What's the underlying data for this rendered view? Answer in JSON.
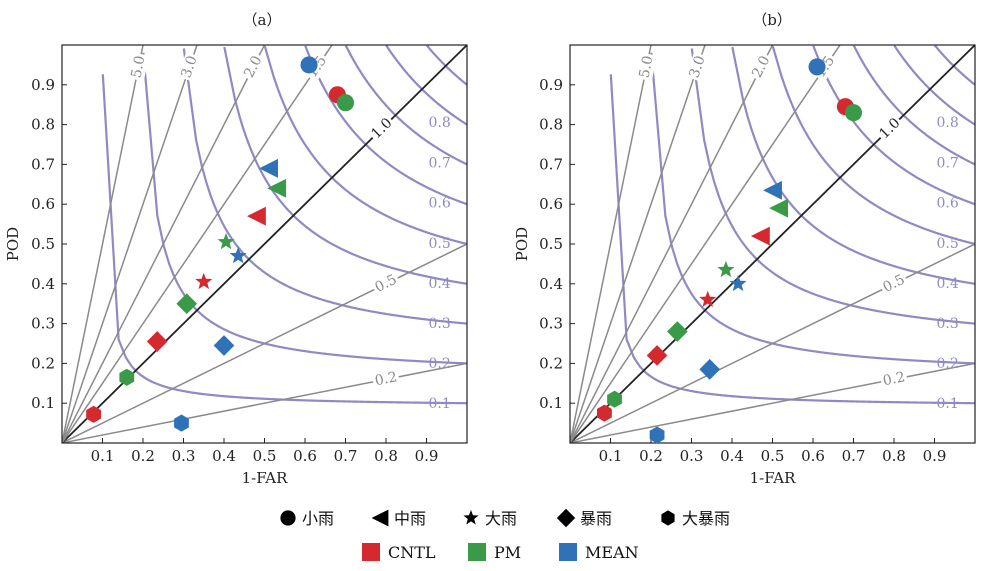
{
  "chart_data": [
    {
      "panel_label": "（a）",
      "type": "scatter",
      "xlabel": "1-FAR",
      "ylabel": "POD",
      "xlim": [
        0,
        1
      ],
      "ylim": [
        0,
        1
      ],
      "xticks": [
        "0.1",
        "0.2",
        "0.3",
        "0.4",
        "0.5",
        "0.6",
        "0.7",
        "0.8",
        "0.9"
      ],
      "yticks": [
        "0.1",
        "0.2",
        "0.3",
        "0.4",
        "0.5",
        "0.6",
        "0.7",
        "0.8",
        "0.9"
      ],
      "background": {
        "csi_isolines": [
          0.1,
          0.2,
          0.3,
          0.4,
          0.5,
          0.6,
          0.7,
          0.8,
          0.9
        ],
        "bias_lines": [
          0.2,
          0.5,
          1.0,
          1.5,
          2.0,
          3.0,
          5.0
        ],
        "bias_labels": [
          "0.2",
          "0.5",
          "1.0",
          "1.5",
          "2.0",
          "3.0",
          "5.0"
        ]
      },
      "series": [
        {
          "name": "CNTL",
          "color": "#d42a2f",
          "points": [
            {
              "category": "小雨",
              "marker": "circle",
              "x": 0.68,
              "y": 0.875
            },
            {
              "category": "中雨",
              "marker": "triangle-left",
              "x": 0.48,
              "y": 0.57
            },
            {
              "category": "大雨",
              "marker": "star",
              "x": 0.35,
              "y": 0.405
            },
            {
              "category": "暴雨",
              "marker": "diamond",
              "x": 0.235,
              "y": 0.255
            },
            {
              "category": "大暴雨",
              "marker": "hexagon",
              "x": 0.078,
              "y": 0.072
            }
          ]
        },
        {
          "name": "PM",
          "color": "#3a9a48",
          "points": [
            {
              "category": "小雨",
              "marker": "circle",
              "x": 0.7,
              "y": 0.855
            },
            {
              "category": "中雨",
              "marker": "triangle-left",
              "x": 0.53,
              "y": 0.64
            },
            {
              "category": "大雨",
              "marker": "star",
              "x": 0.405,
              "y": 0.505
            },
            {
              "category": "暴雨",
              "marker": "diamond",
              "x": 0.308,
              "y": 0.35
            },
            {
              "category": "大暴雨",
              "marker": "hexagon",
              "x": 0.16,
              "y": 0.165
            }
          ]
        },
        {
          "name": "MEAN",
          "color": "#2f72b8",
          "points": [
            {
              "category": "小雨",
              "marker": "circle",
              "x": 0.61,
              "y": 0.95
            },
            {
              "category": "中雨",
              "marker": "triangle-left",
              "x": 0.51,
              "y": 0.69
            },
            {
              "category": "大雨",
              "marker": "star",
              "x": 0.435,
              "y": 0.47
            },
            {
              "category": "暴雨",
              "marker": "diamond",
              "x": 0.4,
              "y": 0.245
            },
            {
              "category": "大暴雨",
              "marker": "hexagon",
              "x": 0.295,
              "y": 0.05
            }
          ]
        }
      ]
    },
    {
      "panel_label": "（b）",
      "type": "scatter",
      "xlabel": "1-FAR",
      "ylabel": "POD",
      "xlim": [
        0,
        1
      ],
      "ylim": [
        0,
        1
      ],
      "xticks": [
        "0.1",
        "0.2",
        "0.3",
        "0.4",
        "0.5",
        "0.6",
        "0.7",
        "0.8",
        "0.9"
      ],
      "yticks": [
        "0.1",
        "0.2",
        "0.3",
        "0.4",
        "0.5",
        "0.6",
        "0.7",
        "0.8",
        "0.9"
      ],
      "background": {
        "csi_isolines": [
          0.1,
          0.2,
          0.3,
          0.4,
          0.5,
          0.6,
          0.7,
          0.8,
          0.9
        ],
        "bias_lines": [
          0.2,
          0.5,
          1.0,
          1.5,
          2.0,
          3.0,
          5.0
        ],
        "bias_labels": [
          "0.2",
          "0.5",
          "1.0",
          "1.5",
          "2.0",
          "3.0",
          "5.0"
        ]
      },
      "series": [
        {
          "name": "CNTL",
          "color": "#d42a2f",
          "points": [
            {
              "category": "小雨",
              "marker": "circle",
              "x": 0.68,
              "y": 0.845
            },
            {
              "category": "中雨",
              "marker": "triangle-left",
              "x": 0.47,
              "y": 0.52
            },
            {
              "category": "大雨",
              "marker": "star",
              "x": 0.34,
              "y": 0.36
            },
            {
              "category": "暴雨",
              "marker": "diamond",
              "x": 0.215,
              "y": 0.22
            },
            {
              "category": "大暴雨",
              "marker": "hexagon",
              "x": 0.085,
              "y": 0.075
            }
          ]
        },
        {
          "name": "PM",
          "color": "#3a9a48",
          "points": [
            {
              "category": "小雨",
              "marker": "circle",
              "x": 0.7,
              "y": 0.83
            },
            {
              "category": "中雨",
              "marker": "triangle-left",
              "x": 0.515,
              "y": 0.59
            },
            {
              "category": "大雨",
              "marker": "star",
              "x": 0.385,
              "y": 0.435
            },
            {
              "category": "暴雨",
              "marker": "diamond",
              "x": 0.265,
              "y": 0.28
            },
            {
              "category": "大暴雨",
              "marker": "hexagon",
              "x": 0.11,
              "y": 0.11
            }
          ]
        },
        {
          "name": "MEAN",
          "color": "#2f72b8",
          "points": [
            {
              "category": "小雨",
              "marker": "circle",
              "x": 0.61,
              "y": 0.945
            },
            {
              "category": "中雨",
              "marker": "triangle-left",
              "x": 0.5,
              "y": 0.635
            },
            {
              "category": "大雨",
              "marker": "star",
              "x": 0.415,
              "y": 0.4
            },
            {
              "category": "暴雨",
              "marker": "diamond",
              "x": 0.345,
              "y": 0.185
            },
            {
              "category": "大暴雨",
              "marker": "hexagon",
              "x": 0.215,
              "y": 0.02
            }
          ]
        }
      ]
    }
  ],
  "legend": {
    "markers": [
      {
        "label": "小雨",
        "marker": "circle"
      },
      {
        "label": "中雨",
        "marker": "triangle-left"
      },
      {
        "label": "大雨",
        "marker": "star"
      },
      {
        "label": "暴雨",
        "marker": "diamond"
      },
      {
        "label": "大暴雨",
        "marker": "hexagon"
      }
    ],
    "colors": [
      {
        "label": "CNTL",
        "color": "#d42a2f"
      },
      {
        "label": "PM",
        "color": "#3a9a48"
      },
      {
        "label": "MEAN",
        "color": "#2f72b8"
      }
    ]
  },
  "style": {
    "csi_color": "#8f8ac4",
    "bias_color": "#8a8a8a",
    "unit_bias_color": "#222222"
  }
}
